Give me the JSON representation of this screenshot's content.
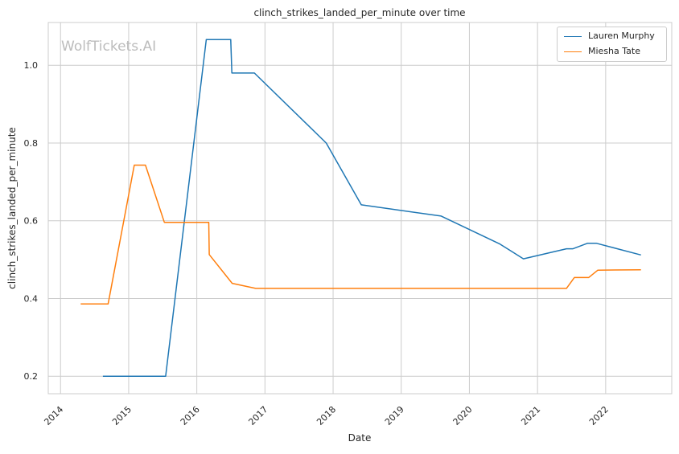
{
  "watermark": "WolfTickets.AI",
  "chart_data": {
    "type": "line",
    "title": "clinch_strikes_landed_per_minute over time",
    "xlabel": "Date",
    "ylabel": "clinch_strikes_landed_per_minute",
    "x_ticks": [
      "2014",
      "2015",
      "2016",
      "2017",
      "2018",
      "2019",
      "2020",
      "2021",
      "2022"
    ],
    "y_ticks": [
      "0.2",
      "0.4",
      "0.6",
      "0.8",
      "1.0"
    ],
    "xlim": [
      2013.82,
      2022.97
    ],
    "ylim": [
      0.155,
      1.11
    ],
    "grid": true,
    "legend_position": "top-right",
    "series": [
      {
        "name": "Lauren Murphy",
        "color": "#1f77b4",
        "x": [
          "2014-08-16",
          "2015-07-18",
          "2016-02-21",
          "2016-07-01",
          "2016-07-07",
          "2016-11-05",
          "2017-11-25",
          "2018-06-01",
          "2019-08-03",
          "2020-06-13",
          "2020-10-17",
          "2021-06-05",
          "2021-07-10",
          "2021-09-25",
          "2021-11-13",
          "2022-07-09"
        ],
        "y": [
          0.2,
          0.2,
          1.066,
          1.066,
          0.98,
          0.98,
          0.8,
          0.641,
          0.612,
          0.54,
          0.502,
          0.528,
          0.528,
          0.542,
          0.542,
          0.512
        ]
      },
      {
        "name": "Miesha Tate",
        "color": "#ff7f0e",
        "x": [
          "2014-04-19",
          "2014-09-13",
          "2015-01-31",
          "2015-04-01",
          "2015-07-11",
          "2016-03-05",
          "2016-03-08",
          "2016-07-09",
          "2016-11-12",
          "2021-06-05",
          "2021-07-17",
          "2021-10-02",
          "2021-11-20",
          "2022-07-09"
        ],
        "y": [
          0.386,
          0.386,
          0.743,
          0.743,
          0.596,
          0.596,
          0.513,
          0.439,
          0.426,
          0.426,
          0.454,
          0.454,
          0.473,
          0.474
        ]
      }
    ]
  }
}
